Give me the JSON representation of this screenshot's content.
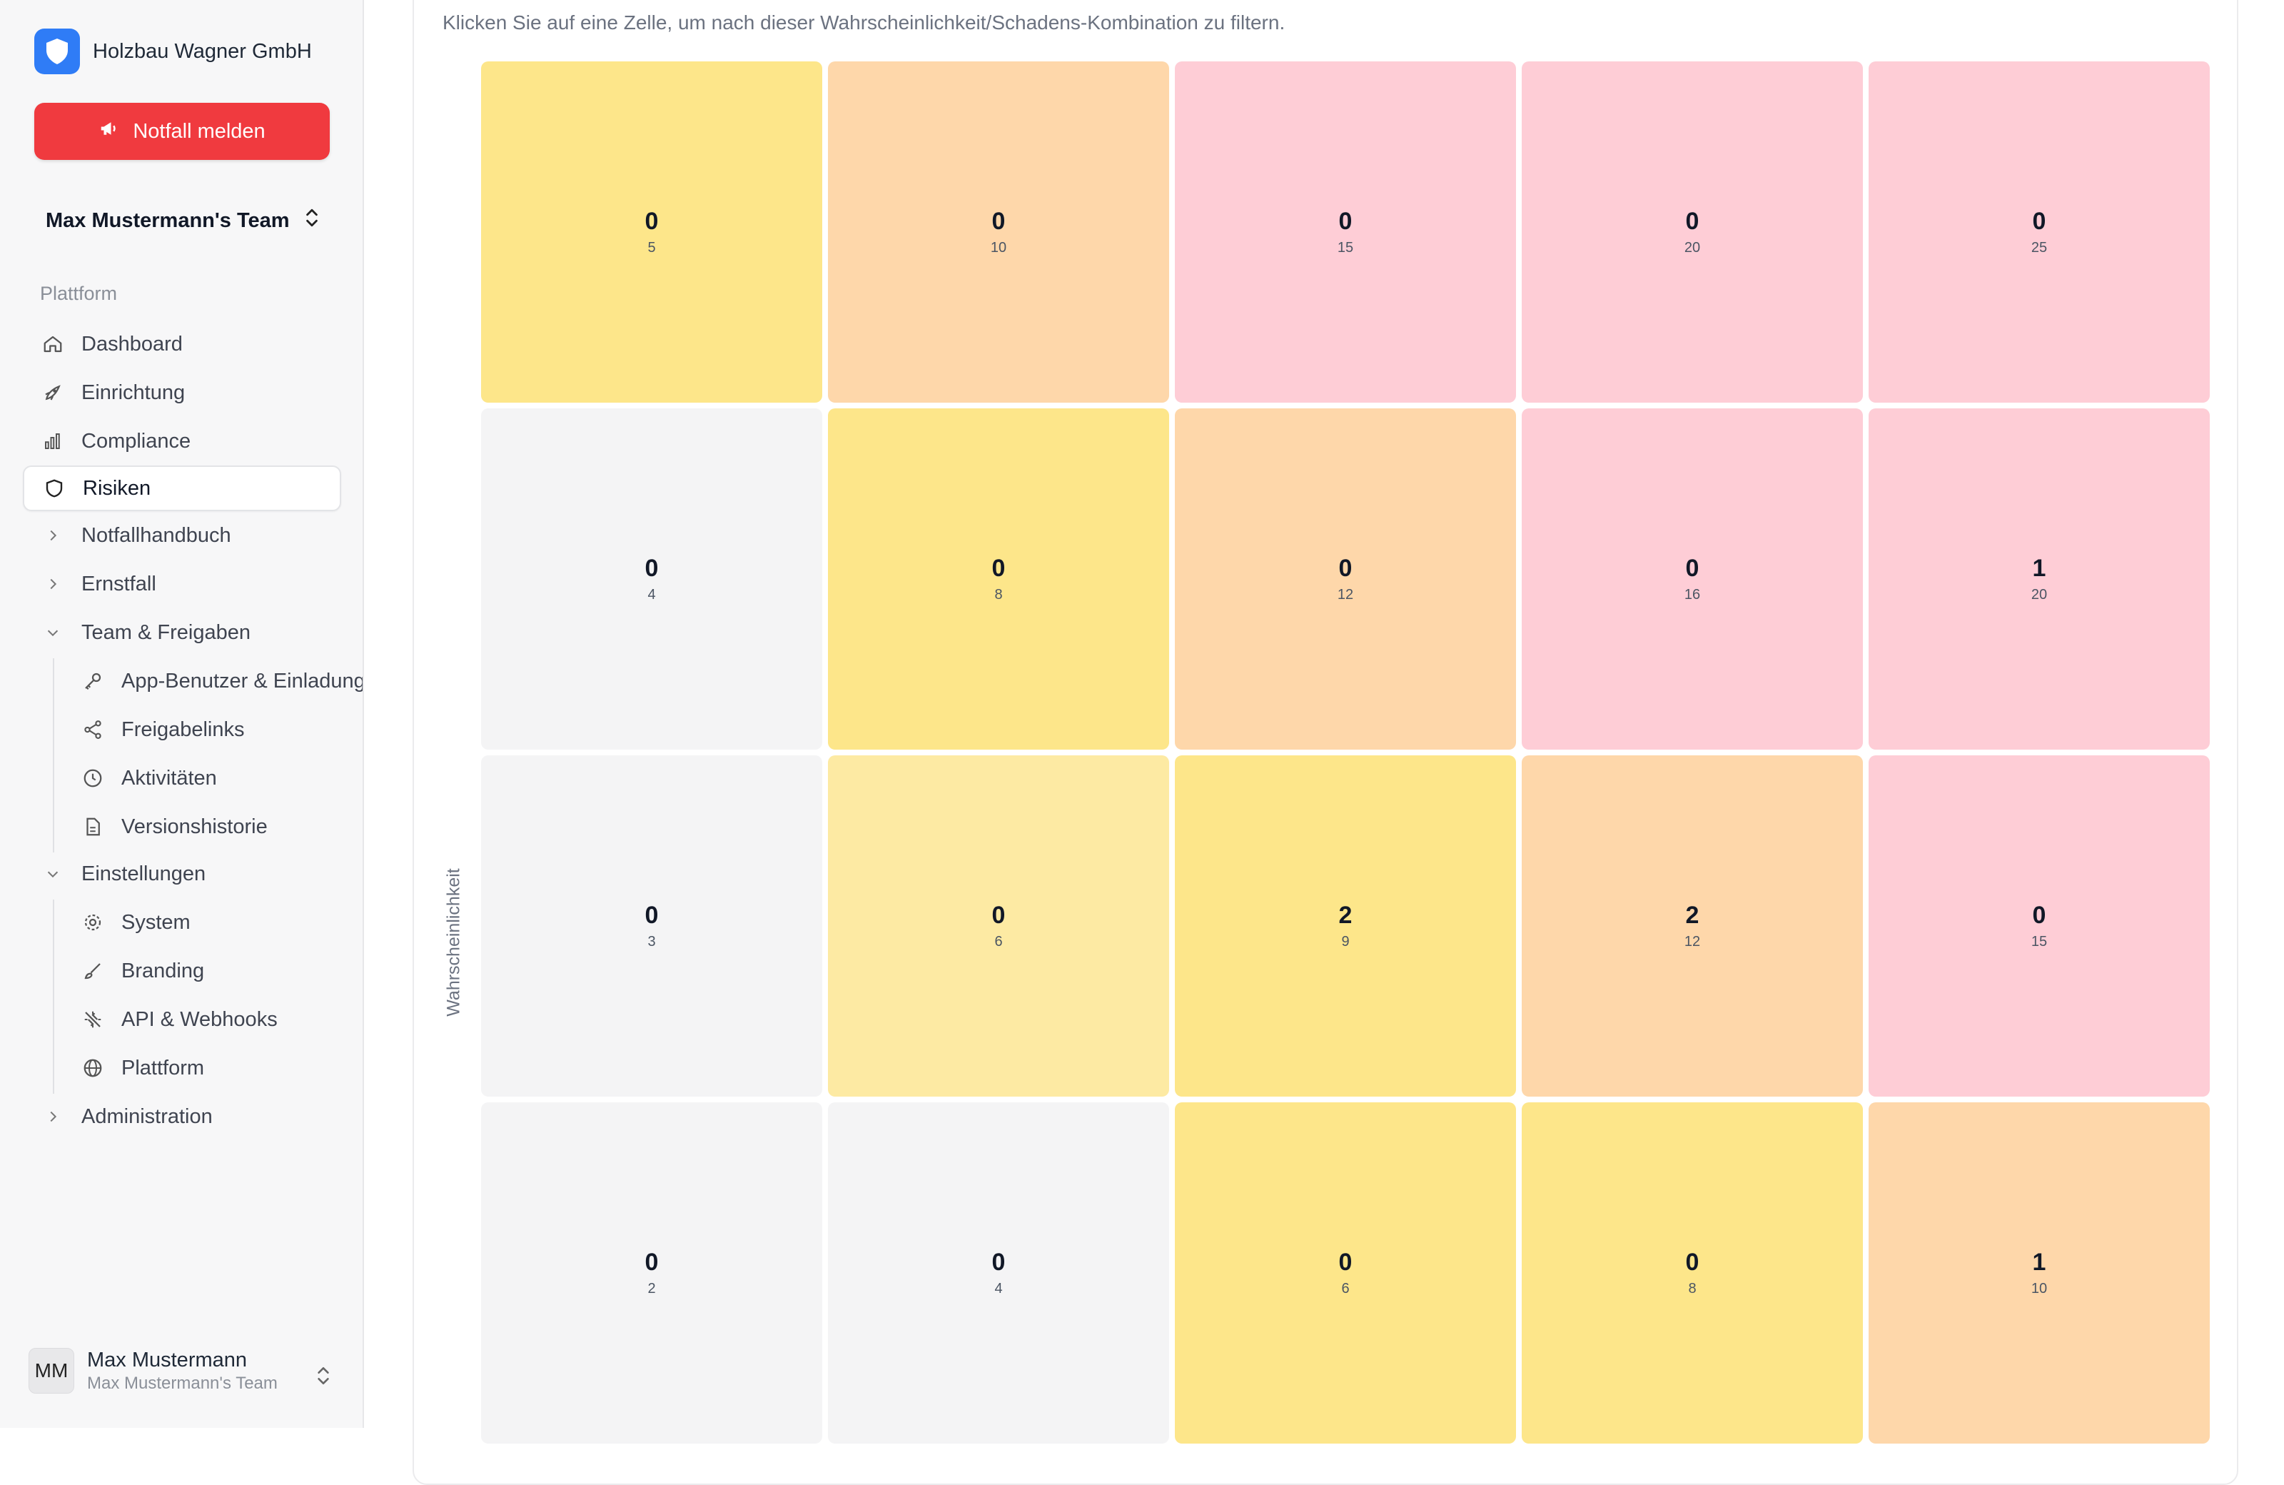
{
  "brand": {
    "name": "Holzbau Wagner GmbH",
    "logo_icon": "shield-icon",
    "color": "#2f7cf6"
  },
  "emergency": {
    "label": "Notfall melden",
    "icon": "megaphone-icon",
    "color": "#f03a3f"
  },
  "team_switcher": {
    "label": "Max Mustermann's Team"
  },
  "sidebar": {
    "section_label": "Plattform",
    "items": [
      {
        "label": "Dashboard",
        "icon": "home-icon"
      },
      {
        "label": "Einrichtung",
        "icon": "rocket-icon"
      },
      {
        "label": "Compliance",
        "icon": "bar-chart-icon"
      },
      {
        "label": "Risiken",
        "icon": "shield-icon",
        "active": true
      },
      {
        "label": "Notfallhandbuch",
        "icon": "chevron-right-icon"
      },
      {
        "label": "Ernstfall",
        "icon": "chevron-right-icon"
      },
      {
        "label": "Team & Freigaben",
        "icon": "chevron-down-icon"
      },
      {
        "label": "Einstellungen",
        "icon": "chevron-down-icon"
      },
      {
        "label": "Administration",
        "icon": "chevron-right-icon"
      }
    ],
    "team_sub": [
      {
        "label": "App-Benutzer & Einladungen",
        "icon": "key-icon"
      },
      {
        "label": "Freigabelinks",
        "icon": "share-icon"
      },
      {
        "label": "Aktivitäten",
        "icon": "clock-icon"
      },
      {
        "label": "Versionshistorie",
        "icon": "file-icon"
      }
    ],
    "settings_sub": [
      {
        "label": "System",
        "icon": "gear-icon"
      },
      {
        "label": "Branding",
        "icon": "brush-icon"
      },
      {
        "label": "API & Webhooks",
        "icon": "webhook-icon"
      },
      {
        "label": "Plattform",
        "icon": "globe-icon"
      }
    ]
  },
  "user": {
    "initials": "MM",
    "name": "Max Mustermann",
    "team": "Max Mustermann's Team"
  },
  "main": {
    "hint": "Klicken Sie auf eine Zelle, um nach dieser Wahrscheinlichkeit/Schadens-Kombination zu filtern.",
    "y_axis_label": "Wahrscheinlichkeit"
  },
  "colors": {
    "gray": "#f4f4f5",
    "yellow": "#fde68a",
    "yellow_light": "#fdeaa3",
    "orange": "#fed7aa",
    "pink": "#fecdd6"
  },
  "matrix": {
    "rows": [
      [
        {
          "count": "0",
          "score": "5",
          "tone": "yellow"
        },
        {
          "count": "0",
          "score": "10",
          "tone": "orange"
        },
        {
          "count": "0",
          "score": "15",
          "tone": "pink"
        },
        {
          "count": "0",
          "score": "20",
          "tone": "pink"
        },
        {
          "count": "0",
          "score": "25",
          "tone": "pink"
        }
      ],
      [
        {
          "count": "0",
          "score": "4",
          "tone": "gray"
        },
        {
          "count": "0",
          "score": "8",
          "tone": "yellow"
        },
        {
          "count": "0",
          "score": "12",
          "tone": "orange"
        },
        {
          "count": "0",
          "score": "16",
          "tone": "pink"
        },
        {
          "count": "1",
          "score": "20",
          "tone": "pink"
        }
      ],
      [
        {
          "count": "0",
          "score": "3",
          "tone": "gray"
        },
        {
          "count": "0",
          "score": "6",
          "tone": "yellow_light"
        },
        {
          "count": "2",
          "score": "9",
          "tone": "yellow"
        },
        {
          "count": "2",
          "score": "12",
          "tone": "orange"
        },
        {
          "count": "0",
          "score": "15",
          "tone": "pink"
        }
      ],
      [
        {
          "count": "0",
          "score": "2",
          "tone": "gray"
        },
        {
          "count": "0",
          "score": "4",
          "tone": "gray"
        },
        {
          "count": "0",
          "score": "6",
          "tone": "yellow"
        },
        {
          "count": "0",
          "score": "8",
          "tone": "yellow"
        },
        {
          "count": "1",
          "score": "10",
          "tone": "orange"
        }
      ]
    ]
  }
}
